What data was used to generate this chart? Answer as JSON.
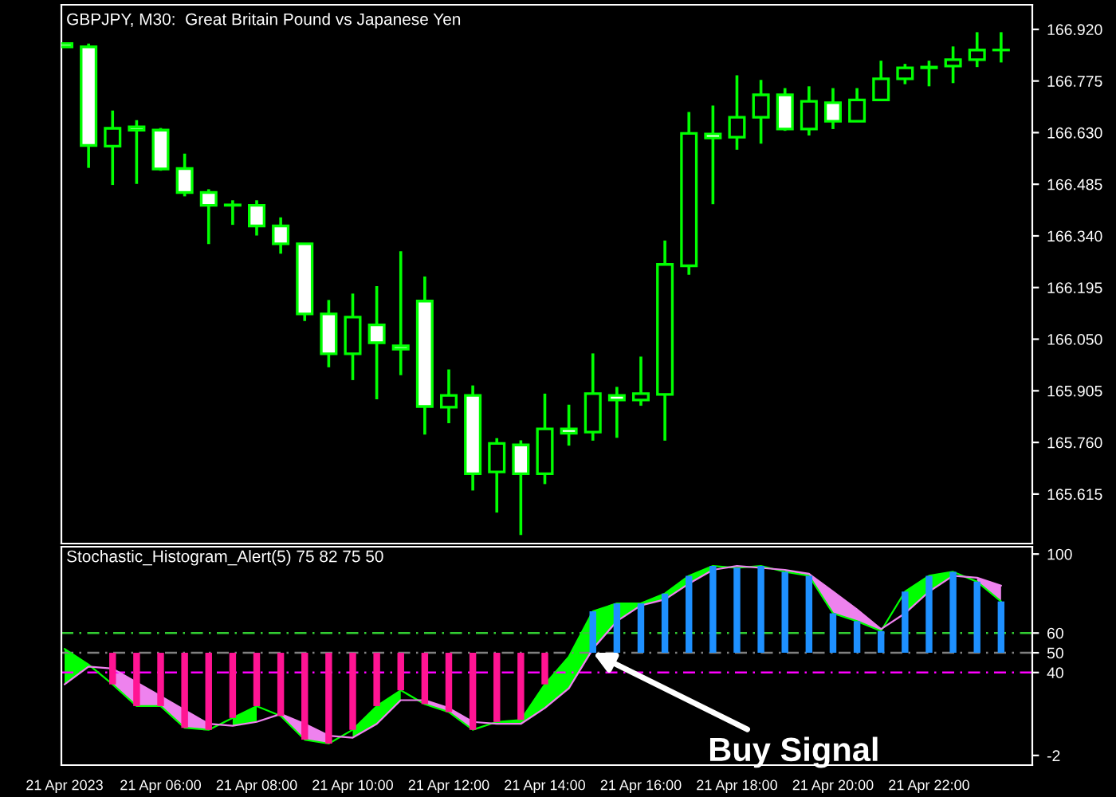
{
  "chart_data": [
    {
      "type": "candlestick",
      "title": "GBPJPY, M30:  Great Britain Pound vs Japanese Yen",
      "x": [
        "2023-04-21T04:00",
        "2023-04-21T04:30",
        "2023-04-21T05:00",
        "2023-04-21T05:30",
        "2023-04-21T06:00",
        "2023-04-21T06:30",
        "2023-04-21T07:00",
        "2023-04-21T07:30",
        "2023-04-21T08:00",
        "2023-04-21T08:30",
        "2023-04-21T09:00",
        "2023-04-21T09:30",
        "2023-04-21T10:00",
        "2023-04-21T10:30",
        "2023-04-21T11:00",
        "2023-04-21T11:30",
        "2023-04-21T12:00",
        "2023-04-21T12:30",
        "2023-04-21T13:00",
        "2023-04-21T13:30",
        "2023-04-21T14:00",
        "2023-04-21T14:30",
        "2023-04-21T15:00",
        "2023-04-21T15:30",
        "2023-04-21T16:00",
        "2023-04-21T16:30",
        "2023-04-21T17:00",
        "2023-04-21T17:30",
        "2023-04-21T18:00",
        "2023-04-21T18:30",
        "2023-04-21T19:00",
        "2023-04-21T19:30",
        "2023-04-21T20:00",
        "2023-04-21T20:30",
        "2023-04-21T21:00",
        "2023-04-21T21:30",
        "2023-04-21T22:00",
        "2023-04-21T22:30",
        "2023-04-21T23:00",
        "2023-04-21T23:30"
      ],
      "xlim": [
        "2023-04-21T03:56",
        "2023-04-22T00:09"
      ],
      "ylim": [
        165.476,
        166.989
      ],
      "yticks": [
        {
          "value": 166.92,
          "label": "166.920"
        },
        {
          "value": 166.775,
          "label": "166.775"
        },
        {
          "value": 166.63,
          "label": "166.630"
        },
        {
          "value": 166.485,
          "label": "166.485"
        },
        {
          "value": 166.34,
          "label": "166.340"
        },
        {
          "value": 166.195,
          "label": "166.195"
        },
        {
          "value": 166.05,
          "label": "166.050"
        },
        {
          "value": 165.905,
          "label": "165.905"
        },
        {
          "value": 165.76,
          "label": "165.760"
        },
        {
          "value": 165.615,
          "label": "165.615"
        }
      ],
      "tick_labels": "y",
      "series": [
        {
          "color": "#00ff00",
          "ohlc": [
            [
              166.88,
              166.882,
              166.87,
              166.871
            ],
            [
              166.871,
              166.88,
              166.531,
              166.594
            ],
            [
              166.592,
              166.692,
              166.483,
              166.642
            ],
            [
              166.646,
              166.665,
              166.486,
              166.637
            ],
            [
              166.637,
              166.643,
              166.523,
              166.528
            ],
            [
              166.529,
              166.571,
              166.451,
              166.462
            ],
            [
              166.462,
              166.471,
              166.317,
              166.426
            ],
            [
              166.427,
              166.44,
              166.371,
              166.426
            ],
            [
              166.426,
              166.44,
              166.341,
              166.368
            ],
            [
              166.368,
              166.392,
              166.29,
              166.318
            ],
            [
              166.318,
              166.318,
              166.101,
              166.121
            ],
            [
              166.121,
              166.16,
              165.971,
              166.009
            ],
            [
              166.009,
              166.178,
              165.935,
              166.112
            ],
            [
              166.09,
              166.199,
              165.881,
              166.04
            ],
            [
              166.031,
              166.297,
              165.949,
              166.022
            ],
            [
              166.157,
              166.226,
              165.782,
              165.861
            ],
            [
              165.859,
              165.965,
              165.814,
              165.892
            ],
            [
              165.892,
              165.92,
              165.625,
              165.672
            ],
            [
              165.677,
              165.772,
              165.563,
              165.757
            ],
            [
              165.753,
              165.766,
              165.5,
              165.672
            ],
            [
              165.672,
              165.897,
              165.643,
              165.798
            ],
            [
              165.798,
              165.866,
              165.751,
              165.786
            ],
            [
              165.789,
              166.01,
              165.765,
              165.897
            ],
            [
              165.892,
              165.916,
              165.773,
              165.879
            ],
            [
              165.879,
              166.001,
              165.863,
              165.897
            ],
            [
              165.895,
              166.327,
              165.765,
              166.26
            ],
            [
              166.256,
              166.688,
              166.231,
              166.628
            ],
            [
              166.626,
              166.706,
              166.429,
              166.615
            ],
            [
              166.617,
              166.791,
              166.582,
              166.673
            ],
            [
              166.673,
              166.778,
              166.599,
              166.736
            ],
            [
              166.736,
              166.755,
              166.635,
              166.64
            ],
            [
              166.64,
              166.76,
              166.622,
              166.718
            ],
            [
              166.714,
              166.755,
              166.64,
              166.662
            ],
            [
              166.662,
              166.755,
              166.662,
              166.722
            ],
            [
              166.722,
              166.832,
              166.722,
              166.781
            ],
            [
              166.781,
              166.823,
              166.766,
              166.812
            ],
            [
              166.812,
              166.832,
              166.76,
              166.814
            ],
            [
              166.817,
              166.872,
              166.769,
              166.835
            ],
            [
              166.835,
              166.912,
              166.814,
              166.862
            ],
            [
              166.862,
              166.912,
              166.827,
              166.862
            ]
          ],
          "colors": [
            "#ffffff",
            "#ffffff",
            "#000000",
            "#ffffff",
            "#ffffff",
            "#ffffff",
            "#ffffff",
            "#ffffff",
            "#ffffff",
            "#ffffff",
            "#ffffff",
            "#ffffff",
            "#000000",
            "#ffffff",
            "#ffffff",
            "#ffffff",
            "#000000",
            "#ffffff",
            "#000000",
            "#ffffff",
            "#000000",
            "#ffffff",
            "#000000",
            "#ffffff",
            "#000000",
            "#000000",
            "#000000",
            "#ffffff",
            "#000000",
            "#000000",
            "#ffffff",
            "#000000",
            "#ffffff",
            "#000000",
            "#000000",
            "#000000",
            "#000000",
            "#000000",
            "#000000",
            "#000000"
          ]
        }
      ]
    },
    {
      "type": "bar",
      "title": "Stochastic_Histogram_Alert(5) 75 82 75 50",
      "x": [
        "2023-04-21T04:00",
        "2023-04-21T04:30",
        "2023-04-21T05:00",
        "2023-04-21T05:30",
        "2023-04-21T06:00",
        "2023-04-21T06:30",
        "2023-04-21T07:00",
        "2023-04-21T07:30",
        "2023-04-21T08:00",
        "2023-04-21T08:30",
        "2023-04-21T09:00",
        "2023-04-21T09:30",
        "2023-04-21T10:00",
        "2023-04-21T10:30",
        "2023-04-21T11:00",
        "2023-04-21T11:30",
        "2023-04-21T12:00",
        "2023-04-21T12:30",
        "2023-04-21T13:00",
        "2023-04-21T13:30",
        "2023-04-21T14:00",
        "2023-04-21T14:30",
        "2023-04-21T15:00",
        "2023-04-21T15:30",
        "2023-04-21T16:00",
        "2023-04-21T16:30",
        "2023-04-21T17:00",
        "2023-04-21T17:30",
        "2023-04-21T18:00",
        "2023-04-21T18:30",
        "2023-04-21T19:00",
        "2023-04-21T19:30",
        "2023-04-21T20:00",
        "2023-04-21T20:30",
        "2023-04-21T21:00",
        "2023-04-21T21:30",
        "2023-04-21T22:00",
        "2023-04-21T22:30",
        "2023-04-21T23:00",
        "2023-04-21T23:30"
      ],
      "xlim": [
        "2023-04-21T03:56",
        "2023-04-22T00:09"
      ],
      "xticks": [
        {
          "value": "2023-04-21T04:00",
          "label": "21 Apr 2023"
        },
        {
          "value": "2023-04-21T06:00",
          "label": "21 Apr 06:00"
        },
        {
          "value": "2023-04-21T08:00",
          "label": "21 Apr 08:00"
        },
        {
          "value": "2023-04-21T10:00",
          "label": "21 Apr 10:00"
        },
        {
          "value": "2023-04-21T12:00",
          "label": "21 Apr 12:00"
        },
        {
          "value": "2023-04-21T14:00",
          "label": "21 Apr 14:00"
        },
        {
          "value": "2023-04-21T16:00",
          "label": "21 Apr 16:00"
        },
        {
          "value": "2023-04-21T18:00",
          "label": "21 Apr 18:00"
        },
        {
          "value": "2023-04-21T20:00",
          "label": "21 Apr 20:00"
        },
        {
          "value": "2023-04-21T22:00",
          "label": "21 Apr 22:00"
        }
      ],
      "ylim": [
        -6.9,
        103.7
      ],
      "yticks": [
        100,
        60,
        50,
        40,
        -2
      ],
      "ref_lines": [
        {
          "axis": "y",
          "value": 60,
          "color": "#32cd32",
          "line_style": "dashed"
        },
        {
          "axis": "y",
          "value": 50,
          "color": "#808080",
          "line_style": "dashed"
        },
        {
          "axis": "y",
          "value": 40,
          "color": "#ff00ff",
          "line_style": "dashed"
        }
      ],
      "annotations": [
        {
          "text": "Buy Signal",
          "x": "2023-04-21T15:00",
          "y": 50
        }
      ],
      "series": [
        {
          "type": "bar",
          "values": [
            null,
            null,
            -16,
            -27,
            -27,
            -38,
            -39,
            -33,
            -27,
            -32,
            -44,
            -46,
            -39,
            -27,
            -19,
            -26,
            -30,
            -39,
            -35,
            -34,
            -16,
            null,
            21,
            25,
            25,
            30,
            39,
            44,
            43,
            44,
            41,
            39,
            20,
            16,
            11,
            31,
            39,
            41,
            36,
            26
          ],
          "base": [
            null,
            null,
            50,
            50,
            50,
            50,
            50,
            50,
            50,
            50,
            50,
            50,
            50,
            50,
            50,
            50,
            50,
            50,
            50,
            50,
            50,
            null,
            50,
            50,
            50,
            50,
            50,
            50,
            50,
            50,
            50,
            50,
            50,
            50,
            50,
            50,
            50,
            50,
            50,
            50
          ],
          "colors": [
            null,
            null,
            "#ff1493",
            "#ff1493",
            "#ff1493",
            "#ff1493",
            "#ff1493",
            "#ff1493",
            "#ff1493",
            "#ff1493",
            "#ff1493",
            "#ff1493",
            "#ff1493",
            "#ff1493",
            "#ff1493",
            "#ff1493",
            "#ff1493",
            "#ff1493",
            "#ff1493",
            "#ff1493",
            "#ff1493",
            null,
            "#1e90ff",
            "#1e90ff",
            "#1e90ff",
            "#1e90ff",
            "#1e90ff",
            "#1e90ff",
            "#1e90ff",
            "#1e90ff",
            "#1e90ff",
            "#1e90ff",
            "#1e90ff",
            "#1e90ff",
            "#1e90ff",
            "#1e90ff",
            "#1e90ff",
            "#1e90ff",
            "#1e90ff",
            "#1e90ff"
          ]
        },
        {
          "type": "line",
          "color": "#00ff00",
          "values": [
            52,
            44,
            34,
            23,
            23,
            12,
            11,
            17,
            23,
            18,
            6,
            4,
            11,
            23,
            31,
            24,
            20,
            11,
            15,
            16,
            34,
            48,
            71,
            75,
            75,
            80,
            89,
            94,
            93,
            94,
            91,
            89,
            70,
            66,
            61,
            81,
            89,
            91,
            86,
            76
          ],
          "lower": [
            34,
            43,
            null,
            null,
            null,
            null,
            null,
            13,
            15,
            null,
            null,
            null,
            7,
            14,
            26,
            null,
            null,
            null,
            14,
            14,
            22,
            32,
            52,
            66,
            74,
            77,
            85,
            92,
            null,
            null,
            null,
            null,
            null,
            null,
            null,
            70,
            81,
            89,
            null,
            null
          ],
          "upper": [
            52,
            44,
            null,
            null,
            null,
            null,
            null,
            17,
            23,
            null,
            null,
            null,
            11,
            23,
            31,
            null,
            null,
            null,
            15,
            16,
            34,
            48,
            71,
            75,
            75,
            80,
            89,
            94,
            null,
            null,
            null,
            null,
            null,
            null,
            null,
            81,
            89,
            91,
            null,
            null
          ]
        },
        {
          "type": "line",
          "color": "#ee82ee",
          "values": [
            34,
            43,
            42,
            35,
            28,
            21,
            14,
            13,
            15,
            19,
            14,
            8,
            7,
            14,
            26,
            26,
            22,
            15,
            14,
            14,
            22,
            32,
            52,
            66,
            74,
            77,
            85,
            92,
            94,
            93,
            92,
            90,
            81,
            72,
            62,
            70,
            81,
            89,
            88,
            84
          ],
          "lower": [
            null,
            null,
            34,
            23,
            23,
            12,
            11,
            null,
            null,
            18,
            6,
            4,
            null,
            null,
            null,
            24,
            20,
            11,
            null,
            null,
            null,
            null,
            null,
            null,
            null,
            null,
            null,
            null,
            null,
            null,
            91,
            89,
            70,
            66,
            61,
            null,
            null,
            null,
            86,
            76
          ],
          "upper": [
            null,
            null,
            42,
            35,
            28,
            21,
            14,
            null,
            null,
            19,
            14,
            8,
            null,
            null,
            null,
            26,
            22,
            15,
            null,
            null,
            null,
            null,
            null,
            null,
            null,
            null,
            null,
            null,
            null,
            null,
            92,
            90,
            81,
            72,
            62,
            null,
            null,
            null,
            88,
            84
          ]
        }
      ]
    }
  ]
}
